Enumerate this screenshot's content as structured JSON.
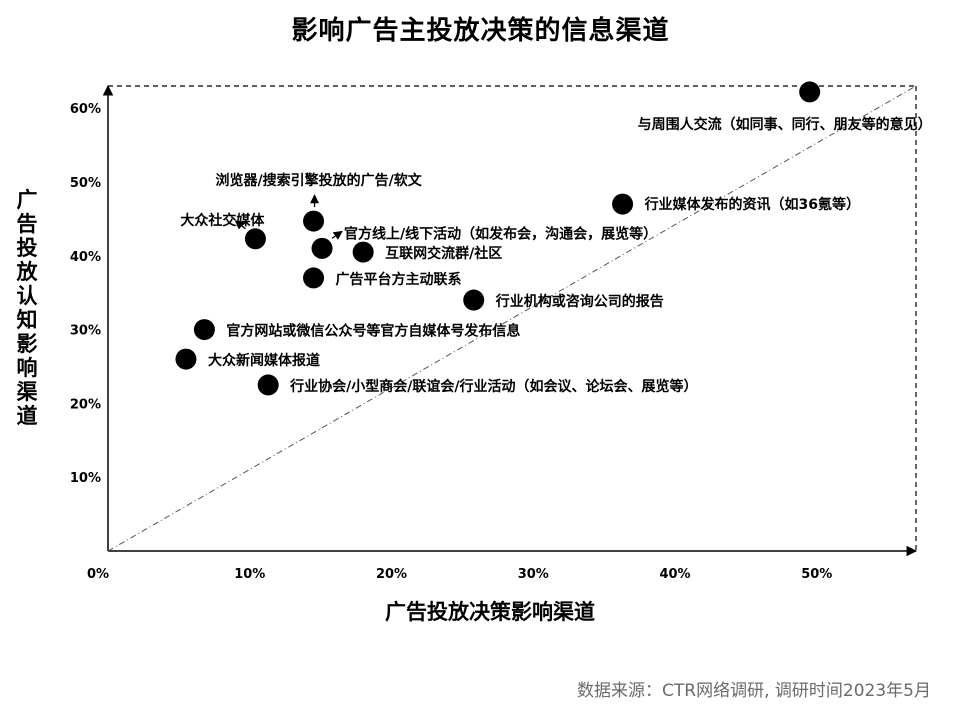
{
  "chart_data": {
    "type": "scatter",
    "title": "影响广告主投放决策的信息渠道",
    "xlabel": "广告投放决策影响渠道",
    "ylabel": "广告投放认知影响渠道",
    "xlim": [
      0,
      0.57
    ],
    "ylim": [
      0,
      0.63
    ],
    "x_ticks": [
      "0%",
      "10%",
      "20%",
      "30%",
      "40%",
      "50%"
    ],
    "y_ticks": [
      "10%",
      "20%",
      "30%",
      "40%",
      "50%",
      "60%"
    ],
    "grid": false,
    "points": [
      {
        "label": "与周围人交流（如同事、同行、朋友等的意见）",
        "x": 0.495,
        "y": 0.622
      },
      {
        "label": "行业媒体发布的资讯（如36氪等）",
        "x": 0.363,
        "y": 0.47
      },
      {
        "label": "浏览器/搜索引擎投放的广告/软文",
        "x": 0.145,
        "y": 0.447
      },
      {
        "label": "大众社交媒体",
        "x": 0.104,
        "y": 0.423
      },
      {
        "label": "官方线上/线下活动（如发布会，沟通会，展览等）",
        "x": 0.151,
        "y": 0.41
      },
      {
        "label": "互联网交流群/社区",
        "x": 0.18,
        "y": 0.405
      },
      {
        "label": "广告平台方主动联系",
        "x": 0.145,
        "y": 0.37
      },
      {
        "label": "行业机构或咨询公司的报告",
        "x": 0.258,
        "y": 0.34
      },
      {
        "label": "官方网站或微信公众号等官方自媒体号发布信息",
        "x": 0.068,
        "y": 0.3
      },
      {
        "label": "大众新闻媒体报道",
        "x": 0.055,
        "y": 0.26
      },
      {
        "label": "行业协会/小型商会/联谊会/行业活动（如会议、论坛会、展览等）",
        "x": 0.113,
        "y": 0.225
      }
    ]
  },
  "source_note": "数据来源：CTR网络调研, 调研时间2023年5月"
}
